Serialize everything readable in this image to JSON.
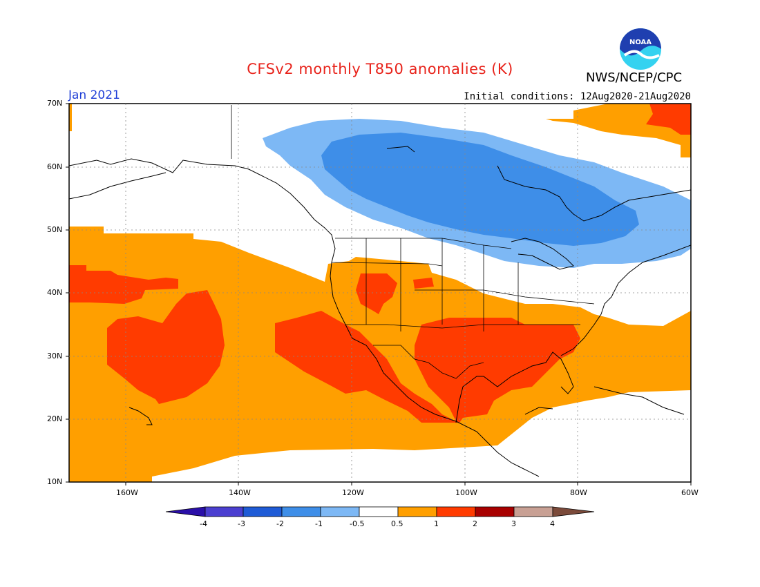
{
  "title": "CFSv2 monthly T850 anomalies (K)",
  "agency": "NWS/NCEP/CPC",
  "logo_text": "NOAA",
  "valid_month": "Jan 2021",
  "initial_conditions": "Initial conditions: 12Aug2020-21Aug2020",
  "map": {
    "lon_range": [
      -170,
      -60
    ],
    "lat_range": [
      10,
      70
    ],
    "lat_labels": [
      "70N",
      "60N",
      "50N",
      "40N",
      "30N",
      "20N",
      "10N"
    ],
    "lon_labels": [
      "160W",
      "140W",
      "120W",
      "100W",
      "80W",
      "60W"
    ],
    "gridlines": "dotted"
  },
  "colorbar": {
    "levels": [
      "-4",
      "-3",
      "-2",
      "-1",
      "-0.5",
      "0.5",
      "1",
      "2",
      "3",
      "4"
    ],
    "colors": [
      "#2a0fa8",
      "#4b3fd0",
      "#1f5bd6",
      "#3e8ee8",
      "#7db8f5",
      "#ffffff",
      "#ff9f00",
      "#ff3b00",
      "#a80000",
      "#c8a094",
      "#7b4a3a"
    ]
  },
  "colors": {
    "title": "#e8231b",
    "valid_month": "#1f3fd6",
    "neg_light": "#7db8f5",
    "neg_mid": "#3e8ee8",
    "pos_light": "#ff9f00",
    "pos_mid": "#ff3b00"
  }
}
